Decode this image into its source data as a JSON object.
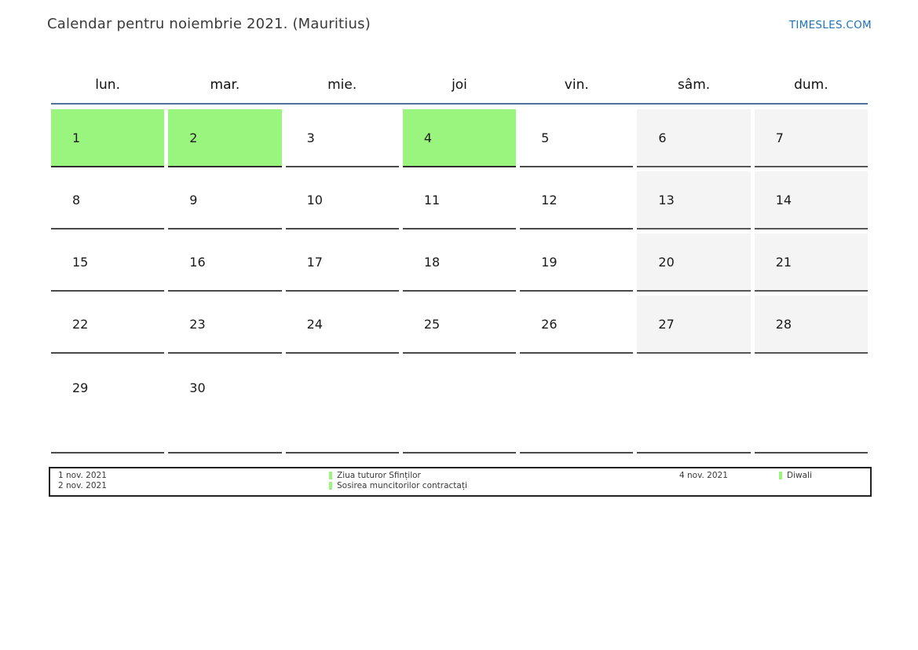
{
  "header": {
    "title": "Calendar pentru noiembrie 2021. (Mauritius)",
    "site_link": "TIMESLES.COM"
  },
  "calendar": {
    "weekdays": [
      "lun.",
      "mar.",
      "mie.",
      "joi",
      "vin.",
      "sâm.",
      "dum."
    ],
    "weeks": [
      [
        {
          "day": "1",
          "type": "holiday"
        },
        {
          "day": "2",
          "type": "holiday"
        },
        {
          "day": "3",
          "type": "normal"
        },
        {
          "day": "4",
          "type": "holiday"
        },
        {
          "day": "5",
          "type": "normal"
        },
        {
          "day": "6",
          "type": "weekend"
        },
        {
          "day": "7",
          "type": "weekend"
        }
      ],
      [
        {
          "day": "8",
          "type": "normal"
        },
        {
          "day": "9",
          "type": "normal"
        },
        {
          "day": "10",
          "type": "normal"
        },
        {
          "day": "11",
          "type": "normal"
        },
        {
          "day": "12",
          "type": "normal"
        },
        {
          "day": "13",
          "type": "weekend"
        },
        {
          "day": "14",
          "type": "weekend"
        }
      ],
      [
        {
          "day": "15",
          "type": "normal"
        },
        {
          "day": "16",
          "type": "normal"
        },
        {
          "day": "17",
          "type": "normal"
        },
        {
          "day": "18",
          "type": "normal"
        },
        {
          "day": "19",
          "type": "normal"
        },
        {
          "day": "20",
          "type": "weekend"
        },
        {
          "day": "21",
          "type": "weekend"
        }
      ],
      [
        {
          "day": "22",
          "type": "normal"
        },
        {
          "day": "23",
          "type": "normal"
        },
        {
          "day": "24",
          "type": "normal"
        },
        {
          "day": "25",
          "type": "normal"
        },
        {
          "day": "26",
          "type": "normal"
        },
        {
          "day": "27",
          "type": "weekend"
        },
        {
          "day": "28",
          "type": "weekend"
        }
      ],
      [
        {
          "day": "29",
          "type": "normal"
        },
        {
          "day": "30",
          "type": "normal"
        },
        {
          "day": "",
          "type": "empty"
        },
        {
          "day": "",
          "type": "empty"
        },
        {
          "day": "",
          "type": "empty"
        },
        {
          "day": "",
          "type": "empty"
        },
        {
          "day": "",
          "type": "empty"
        }
      ]
    ]
  },
  "legend": {
    "groups": [
      {
        "dates": [
          "1 nov. 2021",
          "2 nov. 2021"
        ],
        "names": [
          "Ziua tuturor Sfinților",
          "Sosirea muncitorilor contractați"
        ]
      },
      {
        "dates": [
          "4 nov. 2021"
        ],
        "names": [
          "Diwali"
        ]
      }
    ]
  },
  "colors": {
    "holiday": "#99f57d",
    "weekend": "#f4f4f4",
    "accent": "#1f72b8",
    "header_line": "#50719a"
  }
}
